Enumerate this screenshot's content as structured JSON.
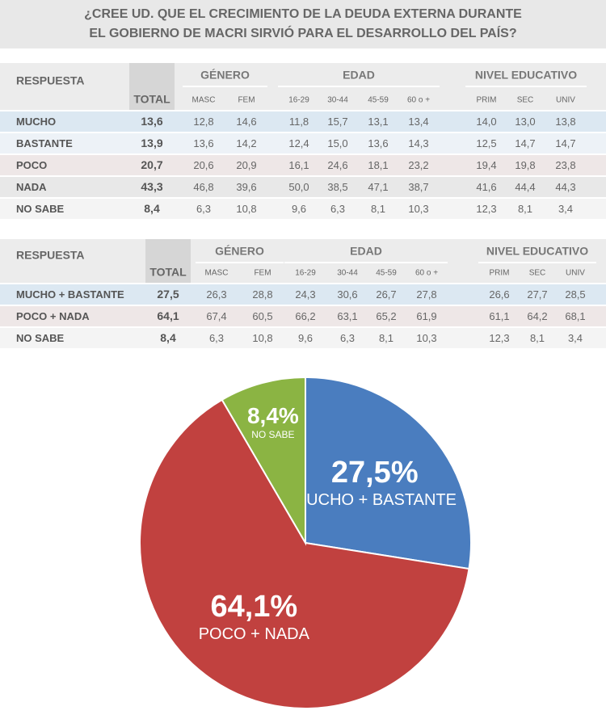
{
  "title_lines": [
    "¿CREE UD. QUE EL CRECIMIENTO DE LA DEUDA EXTERNA DURANTE",
    "EL GOBIERNO DE MACRI SIRVIÓ PARA EL DESARROLLO DEL PAÍS?"
  ],
  "tables": [
    {
      "header": {
        "respuesta": "RESPUESTA",
        "total": "TOTAL",
        "groups": [
          "GÉNERO",
          "EDAD",
          "NIVEL EDUCATIVO"
        ],
        "columns": [
          "MASC",
          "FEM",
          "16-29",
          "30-44",
          "45-59",
          "60 o +",
          "PRIM",
          "SEC",
          "UNIV"
        ]
      },
      "rows": [
        [
          "MUCHO",
          "13,6",
          "12,8",
          "14,6",
          "11,8",
          "15,7",
          "13,1",
          "13,4",
          "14,0",
          "13,0",
          "13,8"
        ],
        [
          "BASTANTE",
          "13,9",
          "13,6",
          "14,2",
          "12,4",
          "15,0",
          "13,6",
          "14,3",
          "12,5",
          "14,7",
          "14,7"
        ],
        [
          "POCO",
          "20,7",
          "20,6",
          "20,9",
          "16,1",
          "24,6",
          "18,1",
          "23,2",
          "19,4",
          "19,8",
          "23,8"
        ],
        [
          "NADA",
          "43,3",
          "46,8",
          "39,6",
          "50,0",
          "38,5",
          "47,1",
          "38,7",
          "41,6",
          "44,4",
          "44,3"
        ],
        [
          "NO SABE",
          "8,4",
          "6,3",
          "10,8",
          "9,6",
          "6,3",
          "8,1",
          "10,3",
          "12,3",
          "8,1",
          "3,4"
        ]
      ]
    },
    {
      "header": {
        "respuesta": "RESPUESTA",
        "total": "TOTAL",
        "groups": [
          "GÉNERO",
          "EDAD",
          "NIVEL EDUCATIVO"
        ],
        "columns": [
          "MASC",
          "FEM",
          "16-29",
          "30-44",
          "45-59",
          "60 o +",
          "PRIM",
          "SEC",
          "UNIV"
        ]
      },
      "rows": [
        [
          "MUCHO + BASTANTE",
          "27,5",
          "26,3",
          "28,8",
          "24,3",
          "30,6",
          "26,7",
          "27,8",
          "26,6",
          "27,7",
          "28,5"
        ],
        [
          "POCO + NADA",
          "64,1",
          "67,4",
          "60,5",
          "66,2",
          "63,1",
          "65,2",
          "61,9",
          "61,1",
          "64,2",
          "68,1"
        ],
        [
          "NO SABE",
          "8,4",
          "6,3",
          "10,8",
          "9,6",
          "6,3",
          "8,1",
          "10,3",
          "12,3",
          "8,1",
          "3,4"
        ]
      ]
    }
  ],
  "chart_data": {
    "type": "pie",
    "categories": [
      "MUCHO + BASTANTE",
      "POCO + NADA",
      "NO SABE"
    ],
    "values": [
      27.5,
      64.1,
      8.4
    ],
    "value_labels": [
      "27,5%",
      "64,1%",
      "8,4%"
    ],
    "colors": [
      "#4a7dbf",
      "#c1413f",
      "#8bb443"
    ]
  }
}
